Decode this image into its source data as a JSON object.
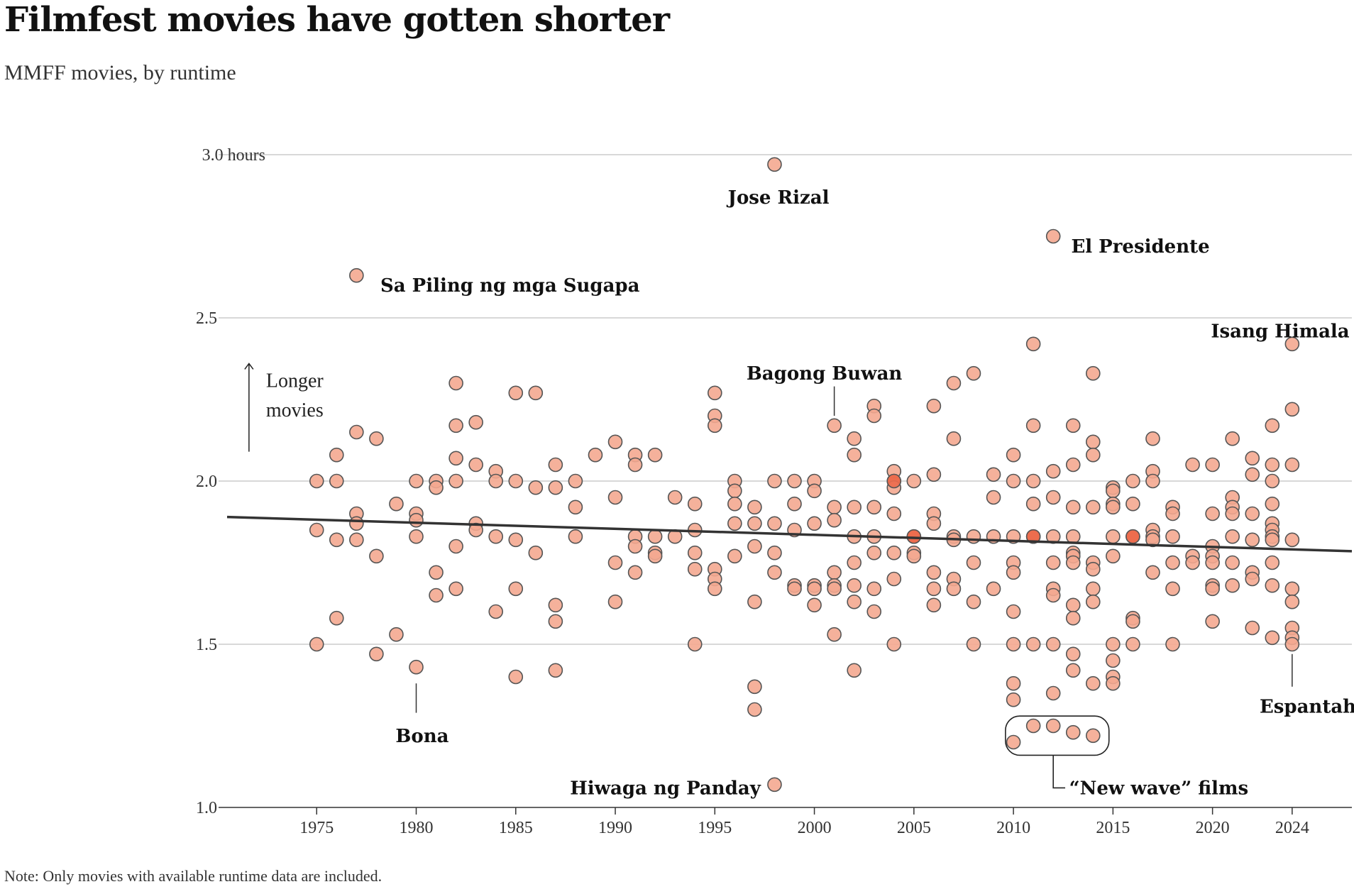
{
  "header": {
    "title": "Filmfest movies have gotten shorter",
    "subtitle": "MMFF movies, by runtime"
  },
  "note": "Note: Only movies with available runtime data are included.",
  "colors": {
    "point_fill": "#f4a890",
    "point_fill_dense": "#ec6b4c",
    "point_fill_densest": "#e0442a",
    "point_stroke": "#555555",
    "trend": "#333333",
    "grid": "#cccccc"
  },
  "chart_data": {
    "type": "scatter",
    "title": "Filmfest movies have gotten shorter",
    "subtitle": "MMFF movies, by runtime",
    "xlabel": "",
    "ylabel": "",
    "xlim": [
      1970.5,
      2027
    ],
    "ylim": [
      1.0,
      3.0
    ],
    "x_ticks": [
      1975,
      1980,
      1985,
      1990,
      1995,
      2000,
      2005,
      2010,
      2015,
      2020,
      2024
    ],
    "y_ticks": [
      {
        "value": 1.0,
        "label": "1.0"
      },
      {
        "value": 1.5,
        "label": "1.5"
      },
      {
        "value": 2.0,
        "label": "2.0"
      },
      {
        "value": 2.5,
        "label": "2.5"
      },
      {
        "value": 3.0,
        "label": "3.0 hours"
      }
    ],
    "trend": {
      "x": [
        1970.5,
        2027
      ],
      "y": [
        1.89,
        1.785
      ]
    },
    "direction_hint": {
      "label_line1": "Longer",
      "label_line2": "movies",
      "from": 2.09,
      "to": 2.36,
      "x": 1971.6
    },
    "annotations": [
      {
        "label": "Jose Rizal",
        "x": 1998,
        "y": 2.97,
        "text_x": 1998.2,
        "text_y": 2.87,
        "anchor": "middle"
      },
      {
        "label": "El Presidente",
        "x": 2012,
        "y": 2.75,
        "text_x": 2012.9,
        "text_y": 2.72,
        "anchor": "start"
      },
      {
        "label": "Sa Piling ng mga Sugapa",
        "x": 1977,
        "y": 2.63,
        "text_x": 1978.2,
        "text_y": 2.6,
        "anchor": "start"
      },
      {
        "label": "Isang Himala",
        "x": 2024,
        "y": 2.42,
        "text_x": 2023.4,
        "text_y": 2.46,
        "anchor": "middle"
      },
      {
        "label": "Bagong Buwan",
        "x": 2001,
        "y": 2.17,
        "text_x": 2000.5,
        "text_y": 2.33,
        "anchor": "middle",
        "line": [
          2.2,
          2.29
        ]
      },
      {
        "label": "Bona",
        "x": 1980,
        "y": 1.43,
        "text_x": 1980.3,
        "text_y": 1.22,
        "anchor": "middle",
        "line": [
          1.29,
          1.38
        ]
      },
      {
        "label": "Espantaho",
        "x": 2024,
        "y": 1.5,
        "text_x": 2025.1,
        "text_y": 1.31,
        "anchor": "middle",
        "line": [
          1.37,
          1.47
        ]
      },
      {
        "label": "Hiwaga ng Panday",
        "x": 1998,
        "y": 1.07,
        "text_x": 1997.3,
        "text_y": 1.06,
        "anchor": "end"
      },
      {
        "label": "“New wave” films",
        "x": 2012,
        "y": 1.23,
        "text_x": 2012.8,
        "text_y": 1.06,
        "anchor": "start",
        "bracket": true
      }
    ],
    "highlight_group": {
      "label": "“New wave” films",
      "x_range": [
        2009.6,
        2014.8
      ],
      "y_range": [
        1.16,
        1.28
      ]
    },
    "points": [
      [
        1975,
        2.0
      ],
      [
        1975,
        1.85
      ],
      [
        1975,
        1.5
      ],
      [
        1976,
        2.08
      ],
      [
        1976,
        2.0
      ],
      [
        1976,
        1.82
      ],
      [
        1976,
        1.58
      ],
      [
        1977,
        2.15
      ],
      [
        1977,
        1.9
      ],
      [
        1977,
        1.87
      ],
      [
        1977,
        1.82
      ],
      [
        1977,
        2.63
      ],
      [
        1978,
        2.13
      ],
      [
        1978,
        1.77
      ],
      [
        1978,
        1.47
      ],
      [
        1979,
        1.93
      ],
      [
        1979,
        1.53
      ],
      [
        1980,
        2.0
      ],
      [
        1980,
        1.9
      ],
      [
        1980,
        1.88
      ],
      [
        1980,
        1.83
      ],
      [
        1980,
        1.43
      ],
      [
        1981,
        2.0
      ],
      [
        1981,
        1.98
      ],
      [
        1981,
        1.72
      ],
      [
        1981,
        1.65
      ],
      [
        1982,
        2.3
      ],
      [
        1982,
        2.17
      ],
      [
        1982,
        2.07
      ],
      [
        1982,
        2.0
      ],
      [
        1982,
        1.8
      ],
      [
        1982,
        1.67
      ],
      [
        1983,
        2.18
      ],
      [
        1983,
        2.05
      ],
      [
        1983,
        1.87
      ],
      [
        1983,
        1.85
      ],
      [
        1984,
        2.03
      ],
      [
        1984,
        2.0
      ],
      [
        1984,
        1.83
      ],
      [
        1984,
        1.6
      ],
      [
        1985,
        2.27
      ],
      [
        1985,
        2.0
      ],
      [
        1985,
        1.82
      ],
      [
        1985,
        1.67
      ],
      [
        1985,
        1.4
      ],
      [
        1986,
        2.27
      ],
      [
        1986,
        1.98
      ],
      [
        1986,
        1.78
      ],
      [
        1987,
        2.05
      ],
      [
        1987,
        1.98
      ],
      [
        1987,
        1.62
      ],
      [
        1987,
        1.57
      ],
      [
        1987,
        1.42
      ],
      [
        1988,
        2.0
      ],
      [
        1988,
        1.92
      ],
      [
        1988,
        1.83
      ],
      [
        1989,
        2.08
      ],
      [
        1990,
        2.12
      ],
      [
        1990,
        1.95
      ],
      [
        1990,
        1.75
      ],
      [
        1990,
        1.63
      ],
      [
        1991,
        2.08
      ],
      [
        1991,
        2.05
      ],
      [
        1991,
        1.83
      ],
      [
        1991,
        1.8
      ],
      [
        1991,
        1.72
      ],
      [
        1992,
        2.08
      ],
      [
        1992,
        1.83
      ],
      [
        1992,
        1.78
      ],
      [
        1992,
        1.77
      ],
      [
        1993,
        1.95
      ],
      [
        1993,
        1.83
      ],
      [
        1994,
        1.93
      ],
      [
        1994,
        1.85
      ],
      [
        1994,
        1.78
      ],
      [
        1994,
        1.73
      ],
      [
        1994,
        1.5
      ],
      [
        1995,
        2.27
      ],
      [
        1995,
        2.2
      ],
      [
        1995,
        2.17
      ],
      [
        1995,
        1.73
      ],
      [
        1995,
        1.7
      ],
      [
        1995,
        1.67
      ],
      [
        1996,
        2.0
      ],
      [
        1996,
        1.97
      ],
      [
        1996,
        1.93
      ],
      [
        1996,
        1.87
      ],
      [
        1996,
        1.77
      ],
      [
        1997,
        1.92
      ],
      [
        1997,
        1.87
      ],
      [
        1997,
        1.8
      ],
      [
        1997,
        1.63
      ],
      [
        1997,
        1.37
      ],
      [
        1997,
        1.3
      ],
      [
        1998,
        2.97
      ],
      [
        1998,
        2.0
      ],
      [
        1998,
        1.87
      ],
      [
        1998,
        1.78
      ],
      [
        1998,
        1.72
      ],
      [
        1998,
        1.07
      ],
      [
        1999,
        2.0
      ],
      [
        1999,
        1.93
      ],
      [
        1999,
        1.85
      ],
      [
        1999,
        1.68
      ],
      [
        1999,
        1.67
      ],
      [
        2000,
        2.0
      ],
      [
        2000,
        1.97
      ],
      [
        2000,
        1.87
      ],
      [
        2000,
        1.68
      ],
      [
        2000,
        1.67
      ],
      [
        2000,
        1.62
      ],
      [
        2001,
        2.17
      ],
      [
        2001,
        1.92
      ],
      [
        2001,
        1.88
      ],
      [
        2001,
        1.72
      ],
      [
        2001,
        1.68
      ],
      [
        2001,
        1.67
      ],
      [
        2001,
        1.53
      ],
      [
        2002,
        2.13
      ],
      [
        2002,
        2.08
      ],
      [
        2002,
        1.92
      ],
      [
        2002,
        1.83
      ],
      [
        2002,
        1.75
      ],
      [
        2002,
        1.68
      ],
      [
        2002,
        1.63
      ],
      [
        2002,
        1.42
      ],
      [
        2003,
        2.23
      ],
      [
        2003,
        2.2
      ],
      [
        2003,
        1.92
      ],
      [
        2003,
        1.83
      ],
      [
        2003,
        1.78
      ],
      [
        2003,
        1.67
      ],
      [
        2003,
        1.6
      ],
      [
        2004,
        2.03
      ],
      [
        2004,
        2.0
      ],
      [
        2004,
        1.98
      ],
      [
        2004,
        2.0
      ],
      [
        2004,
        1.9
      ],
      [
        2004,
        1.78
      ],
      [
        2004,
        1.7
      ],
      [
        2004,
        1.5
      ],
      [
        2005,
        2.0
      ],
      [
        2005,
        1.83
      ],
      [
        2005,
        1.83
      ],
      [
        2005,
        1.78
      ],
      [
        2005,
        1.77
      ],
      [
        2006,
        2.23
      ],
      [
        2006,
        2.02
      ],
      [
        2006,
        1.9
      ],
      [
        2006,
        1.87
      ],
      [
        2006,
        1.72
      ],
      [
        2006,
        1.67
      ],
      [
        2006,
        1.62
      ],
      [
        2007,
        2.3
      ],
      [
        2007,
        2.13
      ],
      [
        2007,
        1.83
      ],
      [
        2007,
        1.82
      ],
      [
        2007,
        1.7
      ],
      [
        2007,
        1.67
      ],
      [
        2008,
        2.33
      ],
      [
        2008,
        1.83
      ],
      [
        2008,
        1.75
      ],
      [
        2008,
        1.63
      ],
      [
        2008,
        1.5
      ],
      [
        2009,
        2.02
      ],
      [
        2009,
        1.95
      ],
      [
        2009,
        1.83
      ],
      [
        2009,
        1.67
      ],
      [
        2010,
        2.08
      ],
      [
        2010,
        2.0
      ],
      [
        2010,
        1.83
      ],
      [
        2010,
        1.75
      ],
      [
        2010,
        1.72
      ],
      [
        2010,
        1.6
      ],
      [
        2010,
        1.5
      ],
      [
        2010,
        1.38
      ],
      [
        2010,
        1.33
      ],
      [
        2010,
        1.2
      ],
      [
        2011,
        2.42
      ],
      [
        2011,
        2.17
      ],
      [
        2011,
        2.0
      ],
      [
        2011,
        1.93
      ],
      [
        2011,
        1.83
      ],
      [
        2011,
        1.83
      ],
      [
        2011,
        1.5
      ],
      [
        2011,
        1.25
      ],
      [
        2012,
        2.75
      ],
      [
        2012,
        2.03
      ],
      [
        2012,
        1.95
      ],
      [
        2012,
        1.83
      ],
      [
        2012,
        1.75
      ],
      [
        2012,
        1.67
      ],
      [
        2012,
        1.65
      ],
      [
        2012,
        1.5
      ],
      [
        2012,
        1.35
      ],
      [
        2012,
        1.25
      ],
      [
        2013,
        2.17
      ],
      [
        2013,
        2.05
      ],
      [
        2013,
        1.92
      ],
      [
        2013,
        1.83
      ],
      [
        2013,
        1.78
      ],
      [
        2013,
        1.77
      ],
      [
        2013,
        1.75
      ],
      [
        2013,
        1.62
      ],
      [
        2013,
        1.58
      ],
      [
        2013,
        1.47
      ],
      [
        2013,
        1.42
      ],
      [
        2013,
        1.23
      ],
      [
        2014,
        2.33
      ],
      [
        2014,
        2.12
      ],
      [
        2014,
        2.08
      ],
      [
        2014,
        1.92
      ],
      [
        2014,
        1.75
      ],
      [
        2014,
        1.73
      ],
      [
        2014,
        1.67
      ],
      [
        2014,
        1.63
      ],
      [
        2014,
        1.38
      ],
      [
        2014,
        1.22
      ],
      [
        2015,
        1.98
      ],
      [
        2015,
        1.97
      ],
      [
        2015,
        1.93
      ],
      [
        2015,
        1.92
      ],
      [
        2015,
        1.83
      ],
      [
        2015,
        1.77
      ],
      [
        2015,
        1.5
      ],
      [
        2015,
        1.45
      ],
      [
        2015,
        1.4
      ],
      [
        2015,
        1.38
      ],
      [
        2016,
        2.0
      ],
      [
        2016,
        1.93
      ],
      [
        2016,
        1.83
      ],
      [
        2016,
        1.83
      ],
      [
        2016,
        1.58
      ],
      [
        2016,
        1.57
      ],
      [
        2016,
        1.5
      ],
      [
        2017,
        2.13
      ],
      [
        2017,
        2.03
      ],
      [
        2017,
        2.0
      ],
      [
        2017,
        1.85
      ],
      [
        2017,
        1.83
      ],
      [
        2017,
        1.82
      ],
      [
        2017,
        1.72
      ],
      [
        2018,
        1.92
      ],
      [
        2018,
        1.9
      ],
      [
        2018,
        1.83
      ],
      [
        2018,
        1.75
      ],
      [
        2018,
        1.67
      ],
      [
        2018,
        1.5
      ],
      [
        2019,
        2.05
      ],
      [
        2019,
        1.77
      ],
      [
        2019,
        1.75
      ],
      [
        2020,
        2.05
      ],
      [
        2020,
        1.9
      ],
      [
        2020,
        1.8
      ],
      [
        2020,
        1.77
      ],
      [
        2020,
        1.75
      ],
      [
        2020,
        1.68
      ],
      [
        2020,
        1.67
      ],
      [
        2020,
        1.57
      ],
      [
        2021,
        2.13
      ],
      [
        2021,
        1.95
      ],
      [
        2021,
        1.92
      ],
      [
        2021,
        1.9
      ],
      [
        2021,
        1.83
      ],
      [
        2021,
        1.75
      ],
      [
        2021,
        1.68
      ],
      [
        2022,
        2.07
      ],
      [
        2022,
        2.02
      ],
      [
        2022,
        1.9
      ],
      [
        2022,
        1.82
      ],
      [
        2022,
        1.72
      ],
      [
        2022,
        1.7
      ],
      [
        2022,
        1.55
      ],
      [
        2023,
        2.17
      ],
      [
        2023,
        2.05
      ],
      [
        2023,
        2.0
      ],
      [
        2023,
        1.93
      ],
      [
        2023,
        1.87
      ],
      [
        2023,
        1.85
      ],
      [
        2023,
        1.83
      ],
      [
        2023,
        1.82
      ],
      [
        2023,
        1.75
      ],
      [
        2023,
        1.68
      ],
      [
        2023,
        1.52
      ],
      [
        2024,
        2.42
      ],
      [
        2024,
        2.22
      ],
      [
        2024,
        2.05
      ],
      [
        2024,
        1.82
      ],
      [
        2024,
        1.67
      ],
      [
        2024,
        1.63
      ],
      [
        2024,
        1.55
      ],
      [
        2024,
        1.52
      ],
      [
        2024,
        1.5
      ]
    ]
  }
}
